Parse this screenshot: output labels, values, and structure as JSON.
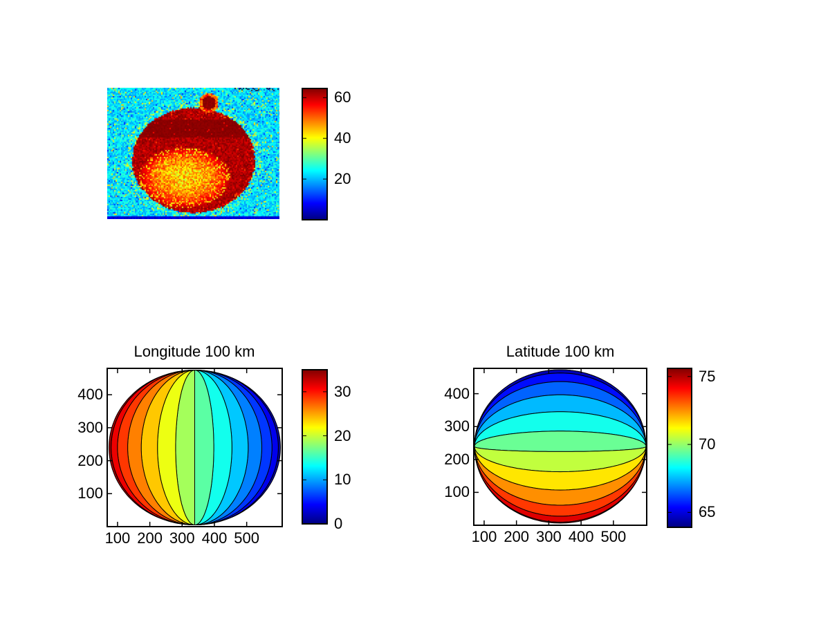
{
  "figure": {
    "background": "#ffffff"
  },
  "chart_data": [
    {
      "type": "heatmap",
      "title": "",
      "colormap": "jet",
      "clim": [
        0,
        64.5
      ],
      "description": "Noisy false-color image of a planetary disk: dark-red saturated disk on cyan noisy sky, bright orange-yellow mottled region in lower-left of disk, darker maroon band across upper disk, small dark satellite spot on upper limb with orange fringe, thin dark-blue line along bottom edge, tiny illegible dark watermark text in top-right corner of image",
      "disk": {
        "center_frac": [
          0.502,
          0.553
        ],
        "radius_frac": [
          0.357,
          0.4
        ]
      },
      "colorbar": {
        "ticks": [
          20,
          40,
          60
        ],
        "clim": [
          0,
          64.5
        ]
      }
    },
    {
      "type": "contour",
      "title": "Longitude 100 km",
      "orientation": "vertical-meridians",
      "colormap": "jet",
      "clim": [
        0,
        35
      ],
      "levels": [
        2.5,
        5,
        7.5,
        10,
        12.5,
        15,
        17.5,
        20,
        22.5,
        25,
        27.5,
        30,
        32.5
      ],
      "value_at_left_limb": 35,
      "value_at_right_limb": 0,
      "xticks": [
        100,
        200,
        300,
        400,
        500
      ],
      "yticks": [
        100,
        200,
        300,
        400
      ],
      "xlim": [
        68,
        610
      ],
      "ylim": [
        0,
        480
      ],
      "colorbar": {
        "ticks": [
          0,
          10,
          20,
          30
        ],
        "clim": [
          0,
          35
        ]
      }
    },
    {
      "type": "contour",
      "title": "Latitude 100 km",
      "orientation": "horizontal-parallels",
      "colormap": "jet",
      "clim": [
        63.9,
        75.6
      ],
      "levels": [
        64,
        65,
        66,
        67,
        68,
        69,
        70,
        71,
        72,
        73,
        74,
        75
      ],
      "value_at_top_limb": 63.9,
      "value_at_bottom_limb": 75.6,
      "xticks": [
        100,
        200,
        300,
        400,
        500
      ],
      "yticks": [
        100,
        200,
        300,
        400
      ],
      "xlim": [
        68,
        603
      ],
      "ylim": [
        0,
        477
      ],
      "colorbar": {
        "ticks": [
          65,
          70,
          75
        ],
        "clim": [
          63.9,
          75.6
        ]
      }
    }
  ]
}
